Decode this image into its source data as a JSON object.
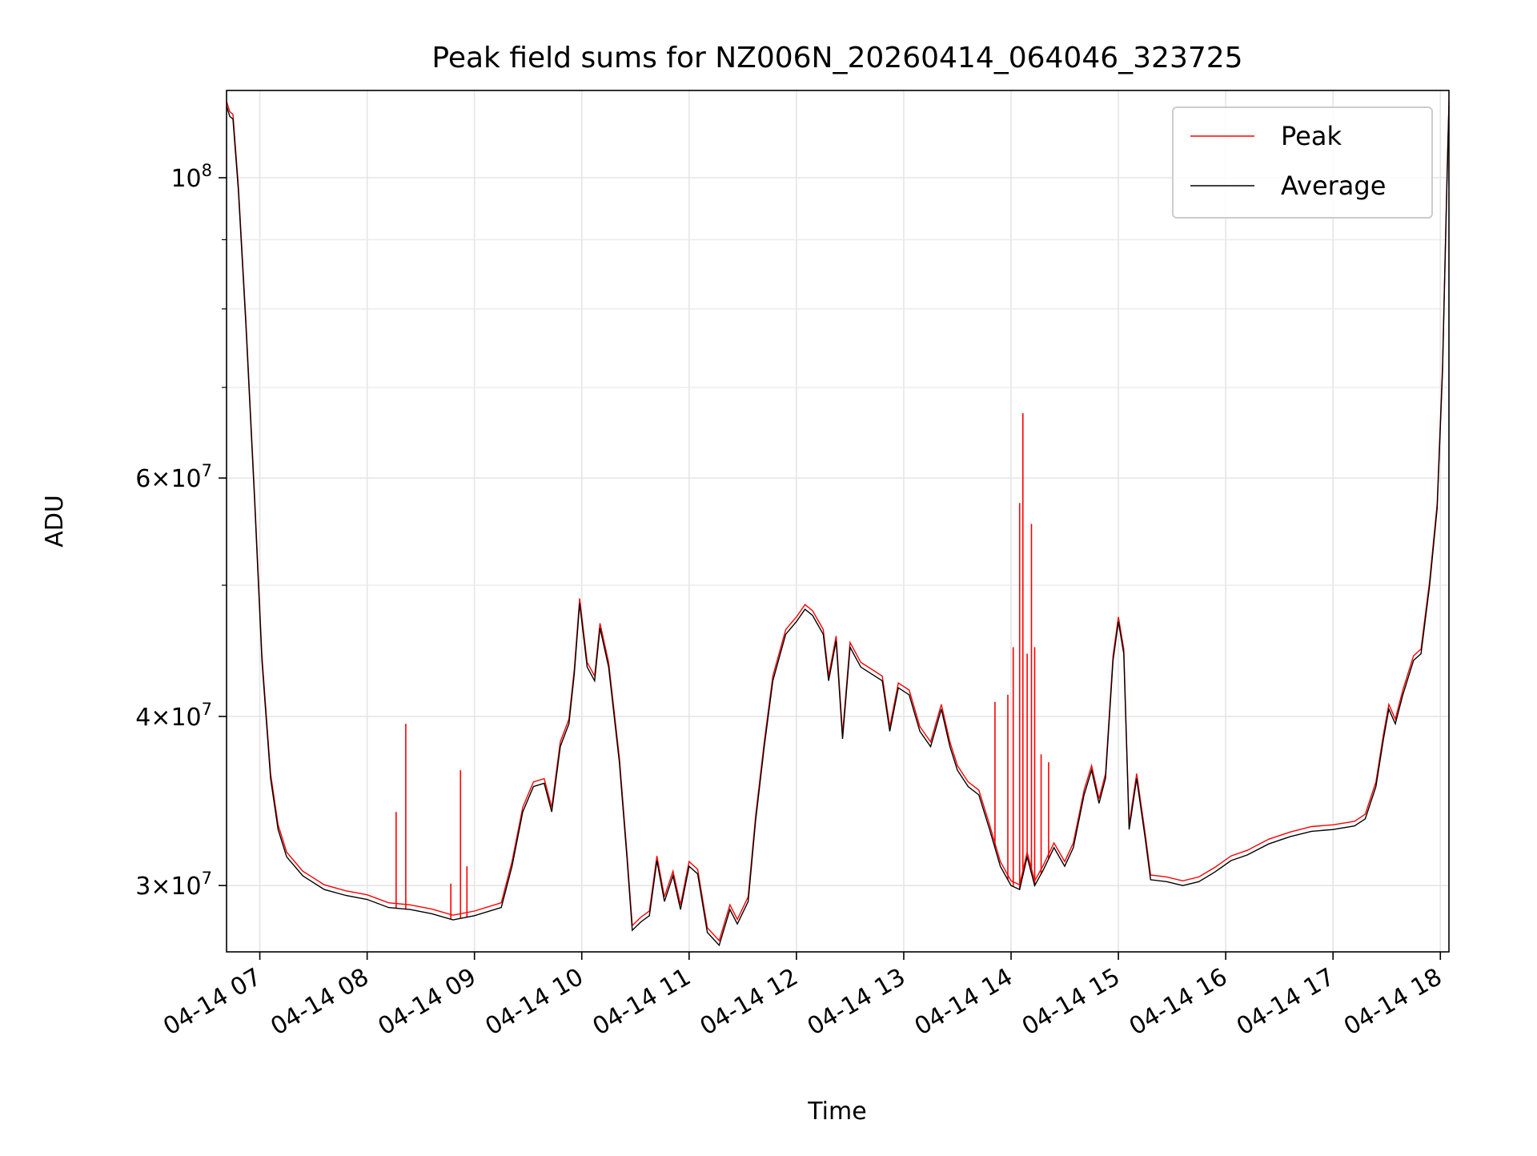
{
  "chart_data": {
    "type": "line",
    "title": "Peak field sums for NZ006N_20260414_064046_323725",
    "xlabel": "Time",
    "ylabel": "ADU",
    "y_scale": "log",
    "ylim": [
      26800000,
      116000000
    ],
    "xlim_hours": [
      6.69,
      18.08
    ],
    "grid": true,
    "legend_position": "top-right",
    "x_ticks": [
      {
        "hour": 7,
        "label": "04-14 07"
      },
      {
        "hour": 8,
        "label": "04-14 08"
      },
      {
        "hour": 9,
        "label": "04-14 09"
      },
      {
        "hour": 10,
        "label": "04-14 10"
      },
      {
        "hour": 11,
        "label": "04-14 11"
      },
      {
        "hour": 12,
        "label": "04-14 12"
      },
      {
        "hour": 13,
        "label": "04-14 13"
      },
      {
        "hour": 14,
        "label": "04-14 14"
      },
      {
        "hour": 15,
        "label": "04-14 15"
      },
      {
        "hour": 16,
        "label": "04-14 16"
      },
      {
        "hour": 17,
        "label": "04-14 17"
      },
      {
        "hour": 18,
        "label": "04-14 18"
      }
    ],
    "y_ticks": [
      {
        "value": 30000000,
        "mantissa": "3",
        "exp": "7"
      },
      {
        "value": 40000000,
        "mantissa": "4",
        "exp": "7"
      },
      {
        "value": 60000000,
        "mantissa": "6",
        "exp": "7"
      },
      {
        "value": 100000000,
        "mantissa": "",
        "exp": "8"
      }
    ],
    "y_minor_ticks": [
      50000000,
      70000000,
      80000000,
      90000000
    ],
    "series": [
      {
        "name": "Peak",
        "color": "#ff0000",
        "spikes": [
          {
            "hour": 8.27,
            "value": 34000000
          },
          {
            "hour": 8.36,
            "value": 39500000
          },
          {
            "hour": 8.78,
            "value": 30100000
          },
          {
            "hour": 8.87,
            "value": 36500000
          },
          {
            "hour": 8.93,
            "value": 31000000
          },
          {
            "hour": 13.85,
            "value": 41000000
          },
          {
            "hour": 13.97,
            "value": 41500000
          },
          {
            "hour": 14.02,
            "value": 45000000
          },
          {
            "hour": 14.08,
            "value": 57500000
          },
          {
            "hour": 14.11,
            "value": 67000000
          },
          {
            "hour": 14.15,
            "value": 44500000
          },
          {
            "hour": 14.19,
            "value": 55500000
          },
          {
            "hour": 14.22,
            "value": 45000000
          },
          {
            "hour": 14.28,
            "value": 37500000
          },
          {
            "hour": 14.35,
            "value": 37000000
          }
        ]
      },
      {
        "name": "Average",
        "color": "#000000",
        "points": [
          [
            6.69,
            113000000
          ],
          [
            6.72,
            111000000
          ],
          [
            6.75,
            110500000
          ],
          [
            6.8,
            98000000
          ],
          [
            6.87,
            78000000
          ],
          [
            6.95,
            58000000
          ],
          [
            7.02,
            44000000
          ],
          [
            7.1,
            36000000
          ],
          [
            7.17,
            33000000
          ],
          [
            7.25,
            31500000
          ],
          [
            7.4,
            30500000
          ],
          [
            7.6,
            29800000
          ],
          [
            7.8,
            29500000
          ],
          [
            8.0,
            29300000
          ],
          [
            8.2,
            28900000
          ],
          [
            8.4,
            28800000
          ],
          [
            8.6,
            28600000
          ],
          [
            8.8,
            28300000
          ],
          [
            9.0,
            28500000
          ],
          [
            9.25,
            28900000
          ],
          [
            9.35,
            31000000
          ],
          [
            9.45,
            34000000
          ],
          [
            9.55,
            35500000
          ],
          [
            9.65,
            35700000
          ],
          [
            9.72,
            34000000
          ],
          [
            9.8,
            38000000
          ],
          [
            9.88,
            39500000
          ],
          [
            9.93,
            43000000
          ],
          [
            9.98,
            48500000
          ],
          [
            10.05,
            43500000
          ],
          [
            10.12,
            42500000
          ],
          [
            10.17,
            46500000
          ],
          [
            10.25,
            43500000
          ],
          [
            10.35,
            37000000
          ],
          [
            10.42,
            31500000
          ],
          [
            10.47,
            27800000
          ],
          [
            10.55,
            28200000
          ],
          [
            10.63,
            28500000
          ],
          [
            10.7,
            31300000
          ],
          [
            10.77,
            29200000
          ],
          [
            10.85,
            30500000
          ],
          [
            10.92,
            28800000
          ],
          [
            11.0,
            31000000
          ],
          [
            11.08,
            30600000
          ],
          [
            11.17,
            27700000
          ],
          [
            11.28,
            27100000
          ],
          [
            11.38,
            28800000
          ],
          [
            11.45,
            28100000
          ],
          [
            11.55,
            29200000
          ],
          [
            11.62,
            33500000
          ],
          [
            11.7,
            38000000
          ],
          [
            11.78,
            42500000
          ],
          [
            11.9,
            46000000
          ],
          [
            12.0,
            47000000
          ],
          [
            12.08,
            48000000
          ],
          [
            12.15,
            47500000
          ],
          [
            12.25,
            46000000
          ],
          [
            12.3,
            42500000
          ],
          [
            12.37,
            45500000
          ],
          [
            12.43,
            38500000
          ],
          [
            12.5,
            45000000
          ],
          [
            12.6,
            43500000
          ],
          [
            12.7,
            43000000
          ],
          [
            12.8,
            42500000
          ],
          [
            12.87,
            39000000
          ],
          [
            12.95,
            42000000
          ],
          [
            13.05,
            41500000
          ],
          [
            13.15,
            39000000
          ],
          [
            13.25,
            38000000
          ],
          [
            13.35,
            40500000
          ],
          [
            13.43,
            38000000
          ],
          [
            13.5,
            36500000
          ],
          [
            13.6,
            35500000
          ],
          [
            13.7,
            35000000
          ],
          [
            13.8,
            33000000
          ],
          [
            13.9,
            31000000
          ],
          [
            14.0,
            30000000
          ],
          [
            14.08,
            29800000
          ],
          [
            14.15,
            31500000
          ],
          [
            14.22,
            30000000
          ],
          [
            14.3,
            30800000
          ],
          [
            14.4,
            32000000
          ],
          [
            14.5,
            31000000
          ],
          [
            14.58,
            32000000
          ],
          [
            14.68,
            35000000
          ],
          [
            14.75,
            36500000
          ],
          [
            14.82,
            34500000
          ],
          [
            14.88,
            36000000
          ],
          [
            14.95,
            44000000
          ],
          [
            15.0,
            47000000
          ],
          [
            15.05,
            44500000
          ],
          [
            15.1,
            33000000
          ],
          [
            15.17,
            36000000
          ],
          [
            15.25,
            32500000
          ],
          [
            15.3,
            30300000
          ],
          [
            15.45,
            30200000
          ],
          [
            15.6,
            30000000
          ],
          [
            15.75,
            30200000
          ],
          [
            15.9,
            30700000
          ],
          [
            16.05,
            31300000
          ],
          [
            16.2,
            31600000
          ],
          [
            16.4,
            32200000
          ],
          [
            16.6,
            32600000
          ],
          [
            16.8,
            32900000
          ],
          [
            17.0,
            33000000
          ],
          [
            17.2,
            33200000
          ],
          [
            17.3,
            33600000
          ],
          [
            17.4,
            35500000
          ],
          [
            17.47,
            38500000
          ],
          [
            17.52,
            40500000
          ],
          [
            17.58,
            39500000
          ],
          [
            17.65,
            41500000
          ],
          [
            17.75,
            44000000
          ],
          [
            17.82,
            44500000
          ],
          [
            17.9,
            50000000
          ],
          [
            17.97,
            57000000
          ],
          [
            18.02,
            72000000
          ],
          [
            18.06,
            98000000
          ],
          [
            18.08,
            113000000
          ]
        ]
      }
    ]
  }
}
